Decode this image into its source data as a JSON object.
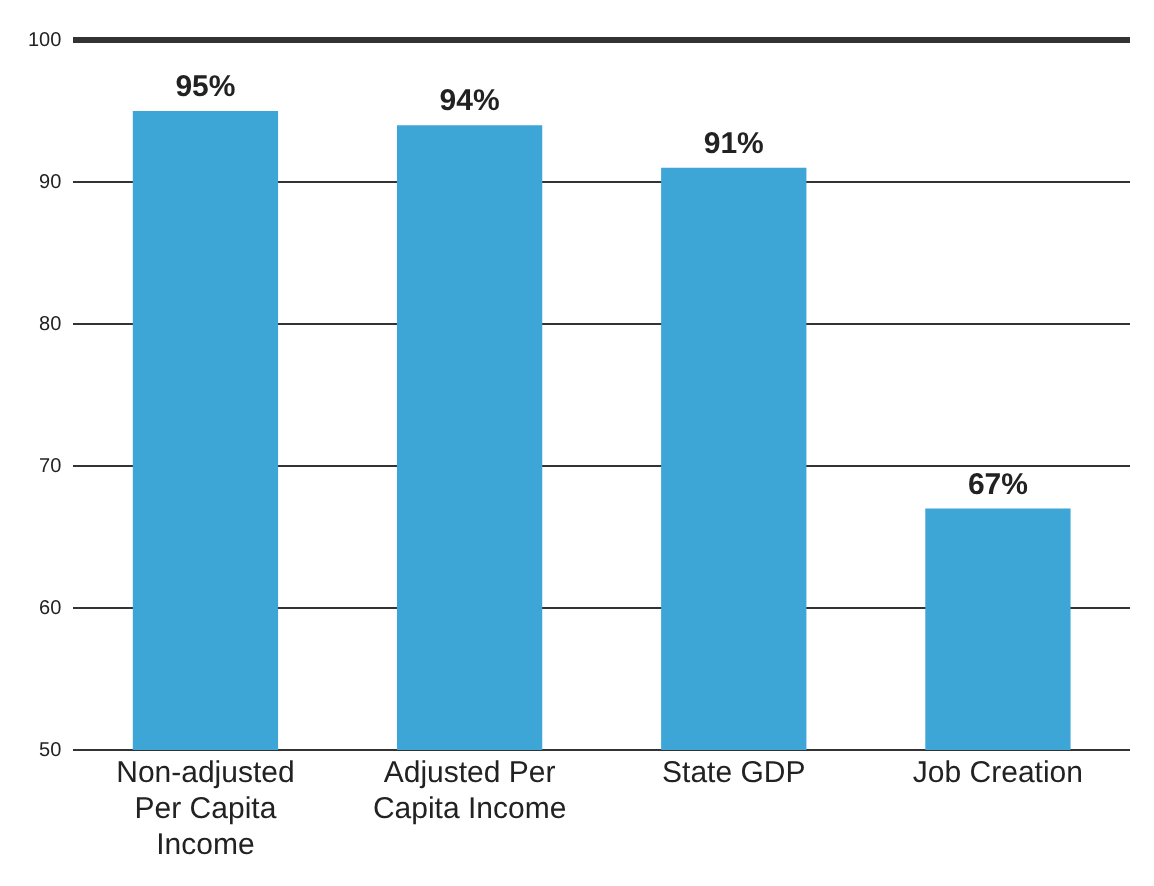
{
  "chart_data": {
    "type": "bar",
    "categories": [
      "Non-adjusted Per Capita Income",
      "Adjusted Per Capita Income",
      "State GDP",
      "Job Creation"
    ],
    "values": [
      95,
      94,
      91,
      67
    ],
    "value_labels": [
      "95%",
      "94%",
      "91%",
      "67%"
    ],
    "color": "#3ea6d6",
    "ylim": [
      50,
      100
    ],
    "yticks": [
      50,
      60,
      70,
      80,
      90,
      100
    ],
    "grid": "y",
    "legend": false
  }
}
